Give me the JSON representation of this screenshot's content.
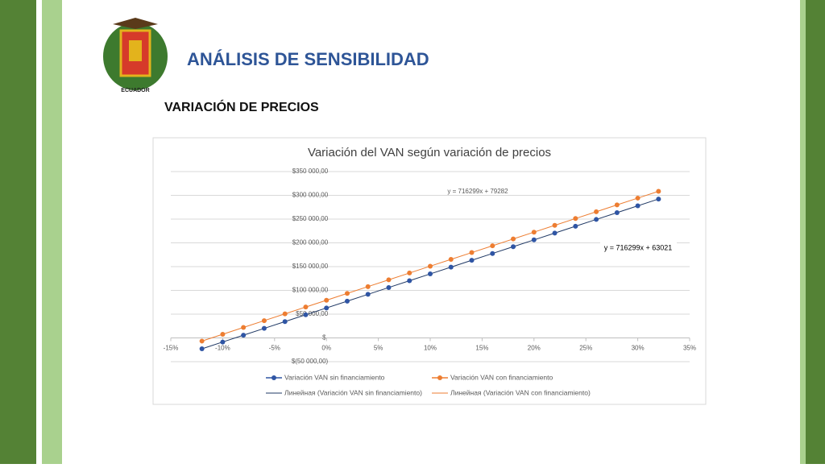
{
  "slide": {
    "title": "ANÁLISIS DE SENSIBILIDAD",
    "subtitle": "VARIACIÓN DE PRECIOS",
    "logo_text": "ECUADOR"
  },
  "chart_data": {
    "type": "scatter-line",
    "title": "Variación del VAN según variación de precios",
    "x": [
      -12,
      -10,
      -8,
      -6,
      -4,
      -2,
      0,
      2,
      4,
      6,
      8,
      10,
      12,
      14,
      16,
      18,
      20,
      22,
      24,
      26,
      28,
      30,
      32
    ],
    "series": [
      {
        "name": "Variación VAN sin financiamiento",
        "color": "#2f55a4",
        "values": [
          -22935,
          -8609,
          5717,
          20043,
          34369,
          48695,
          63021,
          77347,
          91673,
          105999,
          120325,
          134651,
          148977,
          163303,
          177629,
          191955,
          206281,
          220607,
          234933,
          249259,
          263585,
          277911,
          292237
        ],
        "trendline": {
          "name": "Линейная (Variación VAN sin financiamiento)",
          "color": "#1f3864",
          "equation": "y = 716299x + 63021"
        }
      },
      {
        "name": "Variación VAN con financiamiento",
        "color": "#ed7d31",
        "values": [
          -6674,
          7652,
          21978,
          36304,
          50630,
          64956,
          79282,
          93608,
          107934,
          122260,
          136586,
          150912,
          165238,
          179564,
          193890,
          208216,
          222542,
          236868,
          251194,
          265520,
          279846,
          294172,
          308498
        ],
        "trendline": {
          "name": "Линейная (Variación VAN con financiamiento)",
          "color": "#ed7d31",
          "equation": "y = 716299x + 79282"
        }
      }
    ],
    "xlim": [
      -15,
      35
    ],
    "xticks": [
      {
        "value": -15,
        "label": "-15%"
      },
      {
        "value": -10,
        "label": "-10%"
      },
      {
        "value": -5,
        "label": "-5%"
      },
      {
        "value": 0,
        "label": "0%"
      },
      {
        "value": 5,
        "label": "5%"
      },
      {
        "value": 10,
        "label": "10%"
      },
      {
        "value": 15,
        "label": "15%"
      },
      {
        "value": 20,
        "label": "20%"
      },
      {
        "value": 25,
        "label": "25%"
      },
      {
        "value": 30,
        "label": "30%"
      },
      {
        "value": 35,
        "label": "35%"
      }
    ],
    "ylim": [
      -50000,
      350000
    ],
    "yticks": [
      {
        "value": -50000,
        "label": "$(50 000,00)"
      },
      {
        "value": 0,
        "label": "$-"
      },
      {
        "value": 50000,
        "label": "$50 000,00"
      },
      {
        "value": 100000,
        "label": "$100 000,00"
      },
      {
        "value": 150000,
        "label": "$150 000,00"
      },
      {
        "value": 200000,
        "label": "$200 000,00"
      },
      {
        "value": 250000,
        "label": "$250 000,00"
      },
      {
        "value": 300000,
        "label": "$300 000,00"
      },
      {
        "value": 350000,
        "label": "$350 000,00"
      }
    ],
    "grid": true,
    "legend": "bottom"
  }
}
